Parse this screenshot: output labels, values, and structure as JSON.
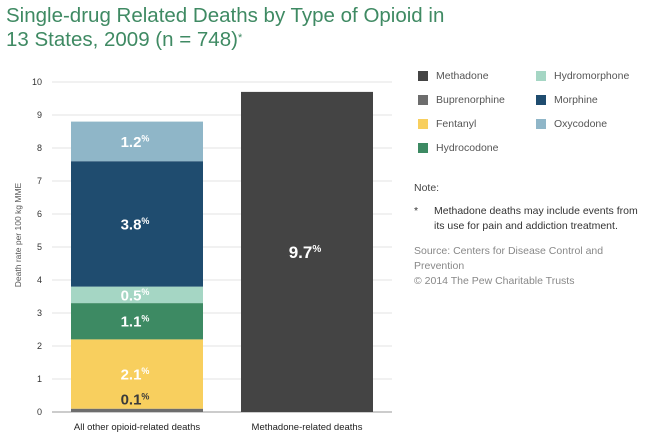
{
  "title": {
    "main": "Single-drug Related Deaths by Type of Opioid in 13 States, 2009 (n = 748)",
    "marker": "*"
  },
  "chart_data": {
    "type": "bar",
    "stacked": true,
    "title": "Single-drug Related Deaths by Type of Opioid in 13 States, 2009 (n = 748)*",
    "xlabel": "",
    "ylabel": "Death rate per 100 kg MME",
    "ylim": [
      0,
      10
    ],
    "yticks": [
      "0",
      "1",
      "2",
      "3",
      "4",
      "5",
      "6",
      "7",
      "8",
      "9",
      "10"
    ],
    "grid": true,
    "legend_position": "right",
    "categories": [
      "All other opioid-related deaths",
      "Methadone-related deaths"
    ],
    "series": [
      {
        "name": "Methadone",
        "color": "#444444",
        "values": [
          0,
          9.7
        ],
        "label": [
          "",
          "9.7"
        ],
        "label_color": "#ffffff"
      },
      {
        "name": "Buprenorphine",
        "color": "#6d6d6d",
        "values": [
          0.1,
          0
        ],
        "label": [
          "0.1",
          ""
        ],
        "label_color": "#3a3a3a"
      },
      {
        "name": "Fentanyl",
        "color": "#f8cf5e",
        "values": [
          2.1,
          0
        ],
        "label": [
          "2.1",
          ""
        ],
        "label_color": "#ffffff"
      },
      {
        "name": "Hydrocodone",
        "color": "#3d8a63",
        "values": [
          1.1,
          0
        ],
        "label": [
          "1.1",
          ""
        ],
        "label_color": "#ffffff"
      },
      {
        "name": "Hydromorphone",
        "color": "#a5d6c4",
        "values": [
          0.5,
          0
        ],
        "label": [
          "0.5",
          ""
        ],
        "label_color": "#ffffff"
      },
      {
        "name": "Morphine",
        "color": "#1f4c6f",
        "values": [
          3.8,
          0
        ],
        "label": [
          "3.8",
          ""
        ],
        "label_color": "#ffffff"
      },
      {
        "name": "Oxycodone",
        "color": "#8fb6c8",
        "values": [
          1.2,
          0
        ],
        "label": [
          "1.2",
          ""
        ],
        "label_color": "#ffffff"
      }
    ],
    "label_unit": "%"
  },
  "legend": {
    "items": [
      {
        "label": "Methadone",
        "color": "#444444"
      },
      {
        "label": "Buprenorphine",
        "color": "#6d6d6d"
      },
      {
        "label": "Fentanyl",
        "color": "#f8cf5e"
      },
      {
        "label": "Hydrocodone",
        "color": "#3d8a63"
      },
      {
        "label": "Hydromorphone",
        "color": "#a5d6c4"
      },
      {
        "label": "Morphine",
        "color": "#1f4c6f"
      },
      {
        "label": "Oxycodone",
        "color": "#8fb6c8"
      }
    ]
  },
  "notes": {
    "title": "Note:",
    "marker": "*",
    "text": "Methadone deaths may include events from its use for pain and addiction treatment."
  },
  "source": "Source: Centers for Disease Control and Prevention",
  "copyright": "© 2014 The Pew Charitable Trusts"
}
